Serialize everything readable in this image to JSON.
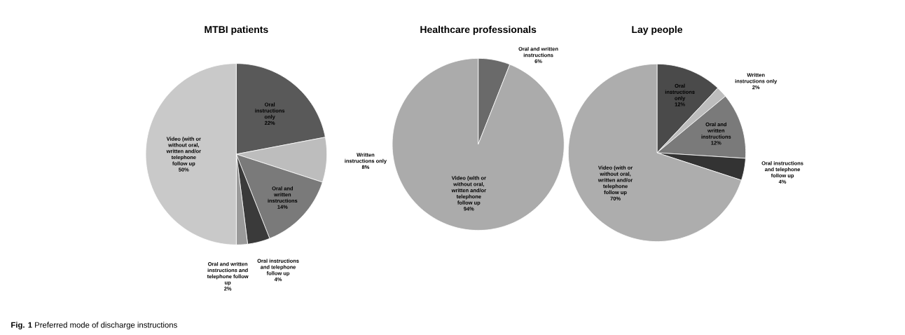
{
  "chart_data": [
    {
      "type": "pie",
      "title": "MTBI patients",
      "categories": [
        "Oral instructions only",
        "Written instructions only",
        "Oral and written instructions",
        "Oral instructions and telephone follow up",
        "Oral and written instructions and telephone follow up",
        "Video (with or without oral, written and/or telephone follow up"
      ],
      "values": [
        22,
        8,
        14,
        4,
        2,
        50
      ],
      "value_labels": [
        "22%",
        "8%",
        "14%",
        "4%",
        "2%",
        "50%"
      ],
      "colors": [
        "#595959",
        "#bdbdbd",
        "#7a7a7a",
        "#3a3a3a",
        "#9a9a9a",
        "#c9c9c9"
      ],
      "annotations": [
        "**Fig. 1** Preferred mode of discharge instructions"
      ]
    },
    {
      "type": "pie",
      "title": "Healthcare professionals",
      "categories": [
        "Oral and written instructions",
        "Video (with or without oral, written and/or telephone follow up"
      ],
      "values": [
        6,
        94
      ],
      "value_labels": [
        "6%",
        "94%"
      ],
      "colors": [
        "#6a6a6a",
        "#ababab"
      ]
    },
    {
      "type": "pie",
      "title": "Lay people",
      "categories": [
        "Oral instructions only",
        "Written instructions only",
        "Oral and written instructions",
        "Oral instructions and telephone follow up",
        "Video (with or without oral, written and/or telephone follow up"
      ],
      "values": [
        12,
        2,
        12,
        4,
        70
      ],
      "value_labels": [
        "12%",
        "2%",
        "12%",
        "4%",
        "70%"
      ],
      "colors": [
        "#4a4a4a",
        "#bdbdbd",
        "#7a7a7a",
        "#333333",
        "#adadad"
      ]
    }
  ]
}
